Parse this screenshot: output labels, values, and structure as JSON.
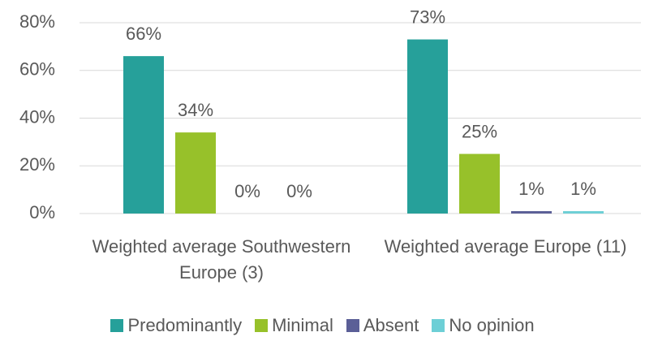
{
  "chart_data": {
    "type": "bar",
    "categories": [
      "Weighted average Southwestern Europe (3)",
      "Weighted average Europe (11)"
    ],
    "series": [
      {
        "name": "Predominantly",
        "color": "#26a09a",
        "values": [
          66,
          73
        ],
        "value_labels": [
          "66%",
          "73%"
        ]
      },
      {
        "name": "Minimal",
        "color": "#97c12a",
        "values": [
          34,
          25
        ],
        "value_labels": [
          "34%",
          "25%"
        ]
      },
      {
        "name": "Absent",
        "color": "#5b5f97",
        "values": [
          0,
          1
        ],
        "value_labels": [
          "0%",
          "1%"
        ]
      },
      {
        "name": "No opinion",
        "color": "#6dcfd6",
        "values": [
          0,
          1
        ],
        "value_labels": [
          "0%",
          "1%"
        ]
      }
    ],
    "ylim": [
      0,
      80
    ],
    "yticks": [
      {
        "value": 0,
        "label": "0%"
      },
      {
        "value": 20,
        "label": "20%"
      },
      {
        "value": 40,
        "label": "40%"
      },
      {
        "value": 60,
        "label": "60%"
      },
      {
        "value": 80,
        "label": "80%"
      }
    ],
    "grid": true,
    "legend": "bottom"
  }
}
